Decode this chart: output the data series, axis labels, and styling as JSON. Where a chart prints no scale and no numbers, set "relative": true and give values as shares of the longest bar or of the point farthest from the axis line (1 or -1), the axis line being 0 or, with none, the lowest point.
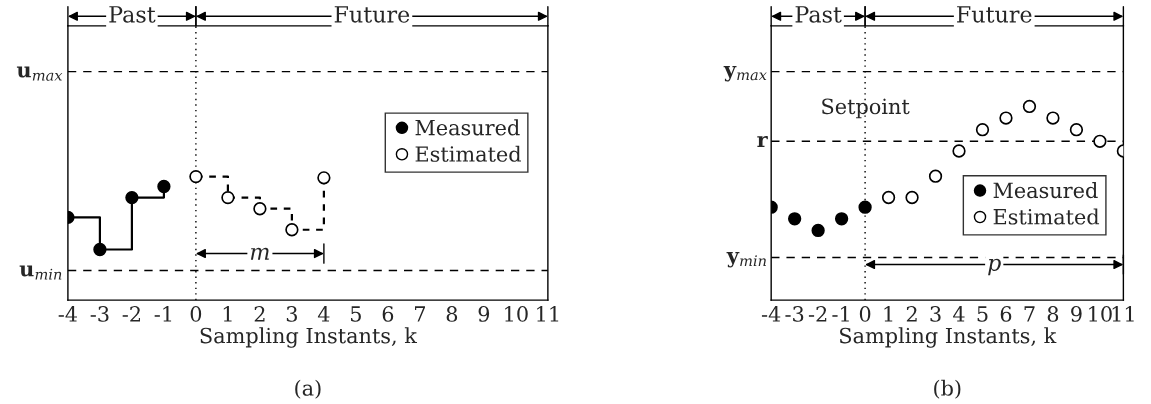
{
  "chart_data": [
    {
      "type": "step",
      "xlabel": "Sampling Instants, k",
      "relative": true,
      "xlim": [
        -4,
        11
      ],
      "xticks": [
        -4,
        -3,
        -2,
        -1,
        0,
        1,
        2,
        3,
        4,
        5,
        6,
        7,
        8,
        9,
        10,
        11
      ],
      "legend": "top right",
      "marker": "circle",
      "series": [
        {
          "name": "Measured",
          "color": "#000000",
          "type": "step",
          "line_style": "solid",
          "x": [
            -4,
            -3,
            -2,
            -1
          ],
          "values": [
            0.67,
            0.41,
            0.83,
            0.92
          ]
        },
        {
          "name": "Estimated",
          "color": "#000000",
          "type": "step",
          "line_style": "dashed",
          "x": [
            0,
            1,
            2,
            3,
            4
          ],
          "values": [
            1.0,
            0.83,
            0.74,
            0.57,
            0.99
          ]
        }
      ],
      "ref_lines": [
        {
          "axis": "y",
          "value": 1.85,
          "label": "u$_{max}$",
          "line_style": "dashed"
        },
        {
          "axis": "y",
          "value": 0.24,
          "label": "u$_{min}$",
          "line_style": "dashed"
        },
        {
          "axis": "x",
          "value": 0,
          "line_style": "dotted"
        }
      ],
      "annotations": [
        "Past",
        "Future",
        "m",
        "(a)"
      ]
    },
    {
      "type": "scatter",
      "xlabel": "Sampling Instants, k",
      "relative": true,
      "xlim": [
        -4,
        11
      ],
      "xticks": [
        -4,
        -3,
        -2,
        -1,
        0,
        1,
        2,
        3,
        4,
        5,
        6,
        7,
        8,
        9,
        10,
        11
      ],
      "legend": "bottom right",
      "marker": "circle",
      "series": [
        {
          "name": "Measured",
          "color": "#000000",
          "type": "scatter",
          "x": [
            -4,
            -3,
            -2,
            -1,
            0
          ],
          "values": [
            0.48,
            0.42,
            0.36,
            0.42,
            0.48
          ]
        },
        {
          "name": "Estimated",
          "color": "#000000",
          "type": "scatter",
          "x": [
            1,
            2,
            3,
            4,
            5,
            6,
            7,
            8,
            9,
            10,
            11
          ],
          "values": [
            0.53,
            0.53,
            0.64,
            0.77,
            0.88,
            0.94,
            1.0,
            0.94,
            0.88,
            0.82,
            0.77
          ]
        }
      ],
      "ref_lines": [
        {
          "axis": "y",
          "value": 1.18,
          "label": "y$_{max}$",
          "line_style": "dashed"
        },
        {
          "axis": "y",
          "value": 0.82,
          "label": "r",
          "line_style": "dashed"
        },
        {
          "axis": "y",
          "value": 0.22,
          "label": "y$_{min}$",
          "line_style": "dashed"
        },
        {
          "axis": "x",
          "value": 0,
          "line_style": "dotted"
        }
      ],
      "annotations": [
        "Past",
        "Future",
        "p",
        "Setpoint",
        "(b)"
      ]
    }
  ]
}
